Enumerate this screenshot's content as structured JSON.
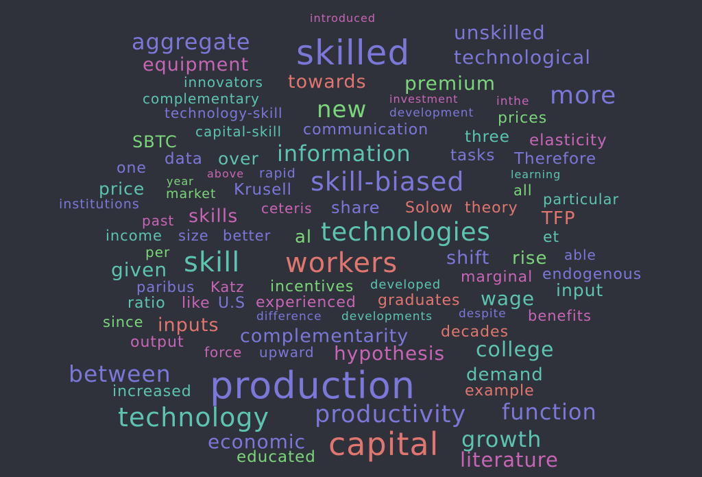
{
  "colors": {
    "background": "#2f323a",
    "violet": "#7b78d9",
    "teal": "#5cc4b1",
    "salmon": "#e0766f",
    "green": "#7bd67a",
    "pink": "#c766b7"
  },
  "words": [
    {
      "text": "introduced",
      "color": "pink"
    },
    {
      "text": "unskilled",
      "color": "violet"
    },
    {
      "text": "aggregate",
      "color": "violet"
    },
    {
      "text": "skilled",
      "color": "violet"
    },
    {
      "text": "technological",
      "color": "violet"
    },
    {
      "text": "equipment",
      "color": "pink"
    },
    {
      "text": "innovators",
      "color": "teal"
    },
    {
      "text": "towards",
      "color": "salmon"
    },
    {
      "text": "premium",
      "color": "green"
    },
    {
      "text": "complementary",
      "color": "teal"
    },
    {
      "text": "investment",
      "color": "pink"
    },
    {
      "text": "more",
      "color": "violet"
    },
    {
      "text": "technology-skill",
      "color": "violet"
    },
    {
      "text": "new",
      "color": "green"
    },
    {
      "text": "development",
      "color": "violet"
    },
    {
      "text": "inthe",
      "color": "pink"
    },
    {
      "text": "prices",
      "color": "green"
    },
    {
      "text": "capital-skill",
      "color": "teal"
    },
    {
      "text": "communication",
      "color": "violet"
    },
    {
      "text": "SBTC",
      "color": "green"
    },
    {
      "text": "three",
      "color": "teal"
    },
    {
      "text": "elasticity",
      "color": "pink"
    },
    {
      "text": "information",
      "color": "teal"
    },
    {
      "text": "data",
      "color": "violet"
    },
    {
      "text": "over",
      "color": "teal"
    },
    {
      "text": "tasks",
      "color": "violet"
    },
    {
      "text": "Therefore",
      "color": "violet"
    },
    {
      "text": "one",
      "color": "violet"
    },
    {
      "text": "above",
      "color": "pink"
    },
    {
      "text": "rapid",
      "color": "violet"
    },
    {
      "text": "skill-biased",
      "color": "violet"
    },
    {
      "text": "learning",
      "color": "teal"
    },
    {
      "text": "year",
      "color": "green"
    },
    {
      "text": "price",
      "color": "teal"
    },
    {
      "text": "market",
      "color": "green"
    },
    {
      "text": "Krusell",
      "color": "violet"
    },
    {
      "text": "all",
      "color": "green"
    },
    {
      "text": "institutions",
      "color": "violet"
    },
    {
      "text": "ceteris",
      "color": "pink"
    },
    {
      "text": "share",
      "color": "violet"
    },
    {
      "text": "Solow",
      "color": "salmon"
    },
    {
      "text": "theory",
      "color": "salmon"
    },
    {
      "text": "particular",
      "color": "teal"
    },
    {
      "text": "past",
      "color": "pink"
    },
    {
      "text": "skills",
      "color": "pink"
    },
    {
      "text": "TFP",
      "color": "salmon"
    },
    {
      "text": "income",
      "color": "teal"
    },
    {
      "text": "size",
      "color": "violet"
    },
    {
      "text": "better",
      "color": "violet"
    },
    {
      "text": "al",
      "color": "green"
    },
    {
      "text": "technologies",
      "color": "teal"
    },
    {
      "text": "et",
      "color": "teal"
    },
    {
      "text": "per",
      "color": "green"
    },
    {
      "text": "skill",
      "color": "teal"
    },
    {
      "text": "workers",
      "color": "salmon"
    },
    {
      "text": "shift",
      "color": "violet"
    },
    {
      "text": "rise",
      "color": "green"
    },
    {
      "text": "able",
      "color": "violet"
    },
    {
      "text": "given",
      "color": "teal"
    },
    {
      "text": "marginal",
      "color": "pink"
    },
    {
      "text": "endogenous",
      "color": "violet"
    },
    {
      "text": "paribus",
      "color": "violet"
    },
    {
      "text": "Katz",
      "color": "pink"
    },
    {
      "text": "incentives",
      "color": "green"
    },
    {
      "text": "developed",
      "color": "teal"
    },
    {
      "text": "input",
      "color": "teal"
    },
    {
      "text": "ratio",
      "color": "teal"
    },
    {
      "text": "like",
      "color": "pink"
    },
    {
      "text": "U.S",
      "color": "violet"
    },
    {
      "text": "experienced",
      "color": "pink"
    },
    {
      "text": "graduates",
      "color": "salmon"
    },
    {
      "text": "wage",
      "color": "teal"
    },
    {
      "text": "since",
      "color": "green"
    },
    {
      "text": "difference",
      "color": "violet"
    },
    {
      "text": "developments",
      "color": "teal"
    },
    {
      "text": "despite",
      "color": "violet"
    },
    {
      "text": "benefits",
      "color": "pink"
    },
    {
      "text": "inputs",
      "color": "salmon"
    },
    {
      "text": "complementarity",
      "color": "violet"
    },
    {
      "text": "output",
      "color": "pink"
    },
    {
      "text": "decades",
      "color": "salmon"
    },
    {
      "text": "force",
      "color": "pink"
    },
    {
      "text": "upward",
      "color": "violet"
    },
    {
      "text": "hypothesis",
      "color": "pink"
    },
    {
      "text": "college",
      "color": "teal"
    },
    {
      "text": "between",
      "color": "violet"
    },
    {
      "text": "production",
      "color": "violet"
    },
    {
      "text": "demand",
      "color": "teal"
    },
    {
      "text": "increased",
      "color": "teal"
    },
    {
      "text": "example",
      "color": "salmon"
    },
    {
      "text": "technology",
      "color": "teal"
    },
    {
      "text": "productivity",
      "color": "violet"
    },
    {
      "text": "function",
      "color": "violet"
    },
    {
      "text": "economic",
      "color": "violet"
    },
    {
      "text": "growth",
      "color": "teal"
    },
    {
      "text": "capital",
      "color": "salmon"
    },
    {
      "text": "educated",
      "color": "green"
    },
    {
      "text": "literature",
      "color": "pink"
    }
  ]
}
